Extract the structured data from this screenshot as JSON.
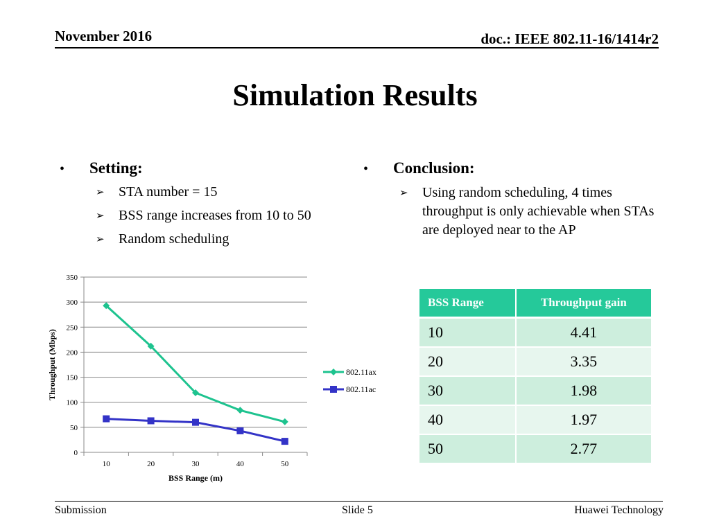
{
  "header": {
    "date": "November 2016",
    "doc": "doc.: IEEE 802.11-16/1414r2"
  },
  "title": "Simulation Results",
  "left": {
    "bullet": "•",
    "heading": "Setting:",
    "items": [
      "STA number = 15",
      "BSS range increases from 10 to 50",
      "Random scheduling"
    ]
  },
  "right": {
    "bullet": "•",
    "heading": "Conclusion:",
    "items": [
      "Using random scheduling, 4 times throughput is only achievable when STAs are deployed near to the AP"
    ]
  },
  "arrow_glyph": "➢",
  "chart_data": {
    "type": "line",
    "x": [
      10,
      20,
      30,
      40,
      50
    ],
    "xlabel": "BSS Range (m)",
    "ylabel": "Throughput (Mbps)",
    "ylim": [
      0,
      350
    ],
    "yticks": [
      0,
      50,
      100,
      150,
      200,
      250,
      300,
      350
    ],
    "grid": true,
    "legend": "right",
    "series": [
      {
        "name": "802.11ax",
        "values": [
          293,
          212,
          119,
          84,
          61
        ],
        "color": "#1ec38f",
        "marker": "diamond"
      },
      {
        "name": "802.11ac",
        "values": [
          67,
          63,
          60,
          43,
          22
        ],
        "color": "#3333c7",
        "marker": "square"
      }
    ]
  },
  "table": {
    "headers": [
      "BSS Range",
      "Throughput gain"
    ],
    "rows": [
      [
        "10",
        "4.41"
      ],
      [
        "20",
        "3.35"
      ],
      [
        "30",
        "1.98"
      ],
      [
        "40",
        "1.97"
      ],
      [
        "50",
        "2.77"
      ]
    ],
    "header_color": "#25c99a"
  },
  "footer": {
    "left": "Submission",
    "center": "Slide 5",
    "right": "Huawei Technology"
  }
}
